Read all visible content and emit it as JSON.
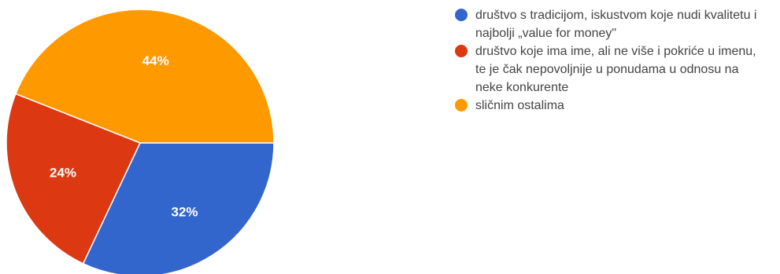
{
  "chart_data": {
    "type": "pie",
    "title": "",
    "legend_position": "right",
    "slices": [
      {
        "label": "društvo s tradicijom, iskustvom koje nudi kvalitetu i najbolji „value for money\"",
        "value": 32,
        "display": "32%",
        "color": "#3366cc"
      },
      {
        "label": "društvo koje ima ime, ali ne više i pokriće u imenu, te je čak nepovoljnije u ponudama u odnosu na neke konkurente",
        "value": 24,
        "display": "24%",
        "color": "#dc3912"
      },
      {
        "label": "sličnim ostalima",
        "value": 44,
        "display": "44%",
        "color": "#ff9900"
      }
    ]
  }
}
